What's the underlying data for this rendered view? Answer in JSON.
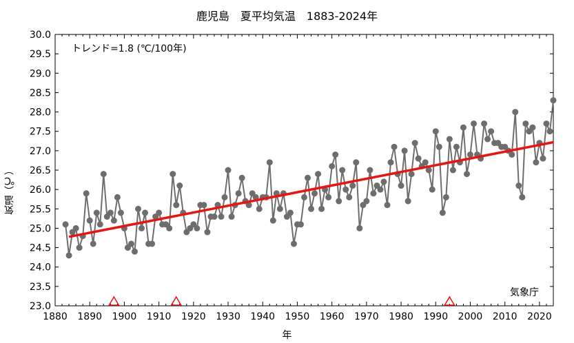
{
  "chart_data": {
    "type": "line",
    "title": "鹿児島　夏平均気温　1883-2024年",
    "xlabel": "年",
    "ylabel": "気温（℃）",
    "annotation": "トレンド=1.8 (℃/100年)",
    "credit": "気象庁",
    "xlim": [
      1880,
      2024
    ],
    "ylim": [
      23.0,
      30.0
    ],
    "xticks": [
      "1880",
      "1890",
      "1900",
      "1910",
      "1920",
      "1930",
      "1940",
      "1950",
      "1960",
      "1970",
      "1980",
      "1990",
      "2000",
      "2010",
      "2020"
    ],
    "yticks": [
      "23.0",
      "23.5",
      "24.0",
      "24.5",
      "25.0",
      "25.5",
      "26.0",
      "26.5",
      "27.0",
      "27.5",
      "28.0",
      "28.5",
      "29.0",
      "29.5",
      "30.0"
    ],
    "grid": false,
    "colors": {
      "series": "#6d6d6d",
      "trend": "#ee1111",
      "markers": "#ee1111"
    },
    "series": [
      {
        "x": [
          1883,
          1884,
          1885,
          1886,
          1887,
          1888,
          1889,
          1890,
          1891,
          1892,
          1893,
          1894,
          1895,
          1896,
          1897,
          1898,
          1899,
          1900,
          1901,
          1902,
          1903,
          1904,
          1905,
          1906,
          1907,
          1908,
          1909,
          1910,
          1911,
          1912,
          1913,
          1914,
          1915,
          1916,
          1917,
          1918,
          1919,
          1920,
          1921,
          1922,
          1923,
          1924,
          1925,
          1926,
          1927,
          1928,
          1929,
          1930,
          1931,
          1932,
          1933,
          1934,
          1935,
          1936,
          1937,
          1938,
          1939,
          1940,
          1941,
          1942,
          1943,
          1944,
          1945,
          1946,
          1947,
          1948,
          1949,
          1950,
          1951,
          1952,
          1953,
          1954,
          1955,
          1956,
          1957,
          1958,
          1959,
          1960,
          1961,
          1962,
          1963,
          1964,
          1965,
          1966,
          1967,
          1968,
          1969,
          1970,
          1971,
          1972,
          1973,
          1974,
          1975,
          1976,
          1977,
          1978,
          1979,
          1980,
          1981,
          1982,
          1983,
          1984,
          1985,
          1986,
          1987,
          1988,
          1989,
          1990,
          1991,
          1992,
          1993,
          1994,
          1995,
          1996,
          1997,
          1998,
          1999,
          2000,
          2001,
          2002,
          2003,
          2004,
          2005,
          2006,
          2007,
          2008,
          2009,
          2010,
          2011,
          2012,
          2013,
          2014,
          2015,
          2016,
          2017,
          2018,
          2019,
          2020,
          2021,
          2022,
          2023,
          2024
        ],
        "values": [
          25.1,
          24.3,
          24.9,
          25.0,
          24.5,
          24.8,
          25.9,
          25.2,
          24.6,
          25.4,
          25.1,
          26.4,
          25.3,
          25.4,
          25.2,
          25.8,
          25.4,
          25.0,
          24.5,
          24.6,
          24.4,
          25.5,
          25.0,
          25.4,
          24.6,
          24.6,
          25.3,
          25.4,
          25.1,
          25.1,
          25.0,
          26.4,
          25.6,
          26.1,
          25.4,
          24.9,
          25.0,
          25.1,
          25.0,
          25.6,
          25.6,
          24.9,
          25.3,
          25.3,
          25.6,
          25.3,
          25.8,
          26.5,
          25.3,
          25.6,
          25.9,
          26.3,
          25.7,
          25.6,
          25.9,
          25.8,
          25.5,
          25.8,
          25.8,
          26.7,
          25.2,
          25.9,
          25.5,
          25.9,
          25.3,
          25.4,
          24.6,
          25.1,
          25.1,
          25.8,
          26.3,
          25.5,
          25.9,
          26.4,
          25.5,
          26.0,
          25.8,
          26.6,
          26.9,
          25.7,
          26.5,
          26.0,
          25.8,
          26.1,
          26.7,
          25.0,
          25.6,
          25.7,
          26.5,
          25.9,
          26.1,
          26.0,
          26.2,
          25.6,
          26.7,
          27.1,
          26.4,
          26.1,
          27.0,
          25.7,
          26.4,
          27.2,
          26.8,
          26.6,
          26.7,
          26.5,
          26.0,
          27.5,
          27.1,
          25.4,
          25.8,
          27.3,
          26.5,
          27.1,
          26.7,
          27.6,
          26.4,
          26.9,
          27.7,
          26.9,
          26.8,
          27.7,
          27.3,
          27.5,
          27.2,
          27.2,
          27.1,
          27.1,
          27.0,
          26.9,
          28.0,
          26.1,
          25.8,
          27.7,
          27.5,
          27.6,
          26.7,
          27.2,
          26.8,
          27.7,
          27.5,
          28.3
        ]
      }
    ],
    "trend_line": {
      "x": [
        1884,
        2024
      ],
      "y": [
        24.78,
        27.22
      ]
    },
    "change_markers": [
      1897,
      1915,
      1994
    ]
  }
}
